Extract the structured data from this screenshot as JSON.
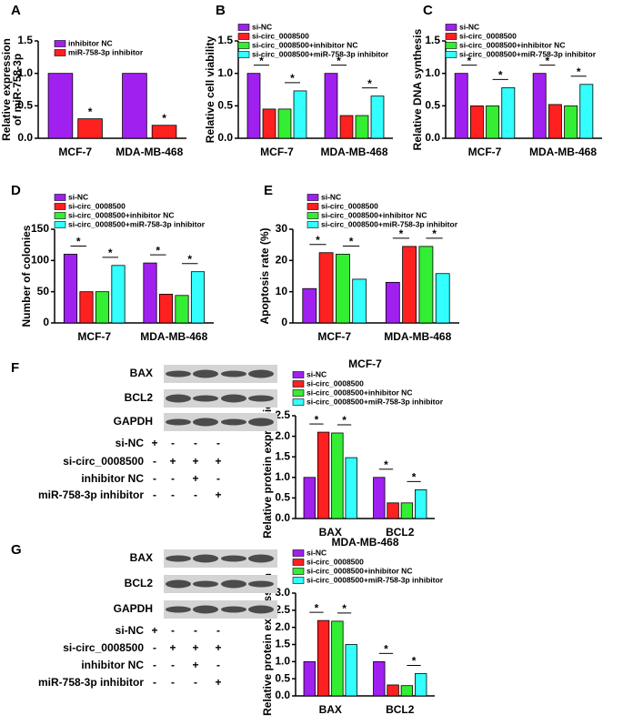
{
  "chart_data": [
    {
      "type": "bar",
      "panel": "A",
      "ylabel": [
        "Relative expression",
        "of miR-758-3p"
      ],
      "categories": [
        "MCF-7",
        "MDA-MB-468"
      ],
      "series": [
        {
          "name": "inhibitor NC",
          "color": "#a020f0",
          "values": [
            1.0,
            1.0
          ]
        },
        {
          "name": "miR-758-3p inhibitor",
          "color": "#ff2020",
          "values": [
            0.3,
            0.2
          ]
        }
      ],
      "ylim": [
        0,
        1.5
      ],
      "yticks": [
        {
          "value": 0,
          "label": "0.0"
        },
        0.5,
        {
          "value": 1,
          "label": "1.0"
        },
        1.5
      ],
      "comparisons": [
        {
          "label": "*",
          "category": 0,
          "series": [
            1
          ]
        },
        {
          "label": "*",
          "category": 1,
          "series": [
            1
          ]
        }
      ]
    },
    {
      "type": "bar",
      "panel": "B",
      "ylabel": "Relative cell viability",
      "categories": [
        "MCF-7",
        "MDA-MB-468"
      ],
      "series": [
        {
          "name": "si-NC",
          "color": "#a020f0",
          "values": [
            1.0,
            1.0
          ]
        },
        {
          "name": "si-circ_0008500",
          "color": "#ff2020",
          "values": [
            0.45,
            0.35
          ]
        },
        {
          "name": "si-circ_0008500+inhibitor NC",
          "color": "#33ee33",
          "values": [
            0.45,
            0.35
          ]
        },
        {
          "name": "si-circ_0008500+miR-758-3p inhibitor",
          "color": "#33ffff",
          "values": [
            0.73,
            0.65
          ]
        }
      ],
      "ylim": [
        0,
        1.5
      ],
      "yticks": [
        {
          "value": 0,
          "label": "0.0"
        },
        0.5,
        {
          "value": 1,
          "label": "1.0"
        },
        1.5
      ],
      "comparisons": [
        {
          "label": "*",
          "category": 0,
          "series": [
            0,
            1
          ]
        },
        {
          "label": "*",
          "category": 0,
          "series": [
            2,
            3
          ]
        },
        {
          "label": "*",
          "category": 1,
          "series": [
            0,
            1
          ]
        },
        {
          "label": "*",
          "category": 1,
          "series": [
            2,
            3
          ]
        }
      ]
    },
    {
      "type": "bar",
      "panel": "C",
      "ylabel": "Relative DNA synthesis",
      "categories": [
        "MCF-7",
        "MDA-MB-468"
      ],
      "series": [
        {
          "name": "si-NC",
          "color": "#a020f0",
          "values": [
            1.0,
            1.0
          ]
        },
        {
          "name": "si-circ_0008500",
          "color": "#ff2020",
          "values": [
            0.5,
            0.52
          ]
        },
        {
          "name": "si-circ_0008500+inhibitor NC",
          "color": "#33ee33",
          "values": [
            0.5,
            0.5
          ]
        },
        {
          "name": "si-circ_0008500+miR-758-3p inhibitor",
          "color": "#33ffff",
          "values": [
            0.78,
            0.83
          ]
        }
      ],
      "ylim": [
        0,
        1.5
      ],
      "yticks": [
        {
          "value": 0,
          "label": "0.0"
        },
        0.5,
        {
          "value": 1,
          "label": "1.0"
        },
        1.5
      ],
      "comparisons": [
        {
          "label": "*",
          "category": 0,
          "series": [
            0,
            1
          ]
        },
        {
          "label": "*",
          "category": 0,
          "series": [
            2,
            3
          ]
        },
        {
          "label": "*",
          "category": 1,
          "series": [
            0,
            1
          ]
        },
        {
          "label": "*",
          "category": 1,
          "series": [
            2,
            3
          ]
        }
      ]
    },
    {
      "type": "bar",
      "panel": "D",
      "ylabel": "Number of colonies",
      "categories": [
        "MCF-7",
        "MDA-MB-468"
      ],
      "series": [
        {
          "name": "si-NC",
          "color": "#a020f0",
          "values": [
            110,
            96
          ]
        },
        {
          "name": "si-circ_0008500",
          "color": "#ff2020",
          "values": [
            50,
            46
          ]
        },
        {
          "name": "si-circ_0008500+inhibitor NC",
          "color": "#33ee33",
          "values": [
            50,
            44
          ]
        },
        {
          "name": "si-circ_0008500+miR-758-3p inhibitor",
          "color": "#33ffff",
          "values": [
            92,
            82
          ]
        }
      ],
      "ylim": [
        0,
        150
      ],
      "yticks": [
        0,
        50,
        100,
        150
      ],
      "comparisons": [
        {
          "label": "*",
          "category": 0,
          "series": [
            0,
            1
          ]
        },
        {
          "label": "*",
          "category": 0,
          "series": [
            2,
            3
          ]
        },
        {
          "label": "*",
          "category": 1,
          "series": [
            0,
            1
          ]
        },
        {
          "label": "*",
          "category": 1,
          "series": [
            2,
            3
          ]
        }
      ]
    },
    {
      "type": "bar",
      "panel": "E",
      "ylabel": "Apoptosis rate (%)",
      "categories": [
        "MCF-7",
        "MDA-MB-468"
      ],
      "series": [
        {
          "name": "si-NC",
          "color": "#a020f0",
          "values": [
            11,
            13
          ]
        },
        {
          "name": "si-circ_0008500",
          "color": "#ff2020",
          "values": [
            22.5,
            24.5
          ]
        },
        {
          "name": "si-circ_0008500+inhibitor NC",
          "color": "#33ee33",
          "values": [
            22,
            24.5
          ]
        },
        {
          "name": "si-circ_0008500+miR-758-3p inhibitor",
          "color": "#33ffff",
          "values": [
            14,
            15.8
          ]
        }
      ],
      "ylim": [
        0,
        30
      ],
      "yticks": [
        0,
        10,
        20,
        30
      ],
      "comparisons": [
        {
          "label": "*",
          "category": 0,
          "series": [
            0,
            1
          ]
        },
        {
          "label": "*",
          "category": 0,
          "series": [
            2,
            3
          ]
        },
        {
          "label": "*",
          "category": 1,
          "series": [
            0,
            1
          ]
        },
        {
          "label": "*",
          "category": 1,
          "series": [
            2,
            3
          ]
        }
      ]
    },
    {
      "type": "bar",
      "panel": "F",
      "title": "MCF-7",
      "ylabel": "Relative protein expression",
      "categories": [
        "BAX",
        "BCL2"
      ],
      "series": [
        {
          "name": "si-NC",
          "color": "#a020f0",
          "values": [
            1.0,
            1.0
          ]
        },
        {
          "name": "si-circ_0008500",
          "color": "#ff2020",
          "values": [
            2.1,
            0.38
          ]
        },
        {
          "name": "si-circ_0008500+inhibitor NC",
          "color": "#33ee33",
          "values": [
            2.08,
            0.38
          ]
        },
        {
          "name": "si-circ_0008500+miR-758-3p inhibitor",
          "color": "#33ffff",
          "values": [
            1.48,
            0.7
          ]
        }
      ],
      "ylim": [
        0,
        2.5
      ],
      "yticks": [
        {
          "value": 0,
          "label": "0.0"
        },
        0.5,
        {
          "value": 1,
          "label": "1.0"
        },
        1.5,
        {
          "value": 2,
          "label": "2.0"
        },
        2.5
      ],
      "comparisons": [
        {
          "label": "*",
          "category": 0,
          "series": [
            0,
            1
          ]
        },
        {
          "label": "*",
          "category": 0,
          "series": [
            2,
            3
          ]
        },
        {
          "label": "*",
          "category": 1,
          "series": [
            0,
            1
          ]
        },
        {
          "label": "*",
          "category": 1,
          "series": [
            2,
            3
          ]
        }
      ]
    },
    {
      "type": "bar",
      "panel": "G",
      "title": "MDA-MB-468",
      "ylabel": "Relative protein expression",
      "categories": [
        "BAX",
        "BCL2"
      ],
      "series": [
        {
          "name": "si-NC",
          "color": "#a020f0",
          "values": [
            1.0,
            1.0
          ]
        },
        {
          "name": "si-circ_0008500",
          "color": "#ff2020",
          "values": [
            2.2,
            0.32
          ]
        },
        {
          "name": "si-circ_0008500+inhibitor NC",
          "color": "#33ee33",
          "values": [
            2.18,
            0.3
          ]
        },
        {
          "name": "si-circ_0008500+miR-758-3p inhibitor",
          "color": "#33ffff",
          "values": [
            1.5,
            0.65
          ]
        }
      ],
      "ylim": [
        0,
        3
      ],
      "yticks": [
        {
          "value": 0,
          "label": "0.0"
        },
        0.5,
        {
          "value": 1,
          "label": "1.0"
        },
        1.5,
        {
          "value": 2,
          "label": "2.0"
        },
        2.5,
        {
          "value": 3,
          "label": "3.0"
        }
      ],
      "comparisons": [
        {
          "label": "*",
          "category": 0,
          "series": [
            0,
            1
          ]
        },
        {
          "label": "*",
          "category": 0,
          "series": [
            2,
            3
          ]
        },
        {
          "label": "*",
          "category": 1,
          "series": [
            0,
            1
          ]
        },
        {
          "label": "*",
          "category": 1,
          "series": [
            2,
            3
          ]
        }
      ]
    }
  ],
  "blots": [
    {
      "bands": [
        "BAX",
        "BCL2",
        "GAPDH"
      ],
      "conditions": [
        {
          "label": "si-NC",
          "signs": [
            "+",
            "-",
            "-",
            "-"
          ]
        },
        {
          "label": "si-circ_0008500",
          "signs": [
            "-",
            "+",
            "+",
            "+"
          ]
        },
        {
          "label": "inhibitor NC",
          "signs": [
            "-",
            "-",
            "+",
            "-"
          ]
        },
        {
          "label": "miR-758-3p inhibitor",
          "signs": [
            "-",
            "-",
            "-",
            "+"
          ]
        }
      ]
    },
    {
      "bands": [
        "BAX",
        "BCL2",
        "GAPDH"
      ],
      "conditions": [
        {
          "label": "si-NC",
          "signs": [
            "+",
            "-",
            "-",
            "-"
          ]
        },
        {
          "label": "si-circ_0008500",
          "signs": [
            "-",
            "+",
            "+",
            "+"
          ]
        },
        {
          "label": "inhibitor NC",
          "signs": [
            "-",
            "-",
            "+",
            "-"
          ]
        },
        {
          "label": "miR-758-3p inhibitor",
          "signs": [
            "-",
            "-",
            "-",
            "+"
          ]
        }
      ]
    }
  ]
}
